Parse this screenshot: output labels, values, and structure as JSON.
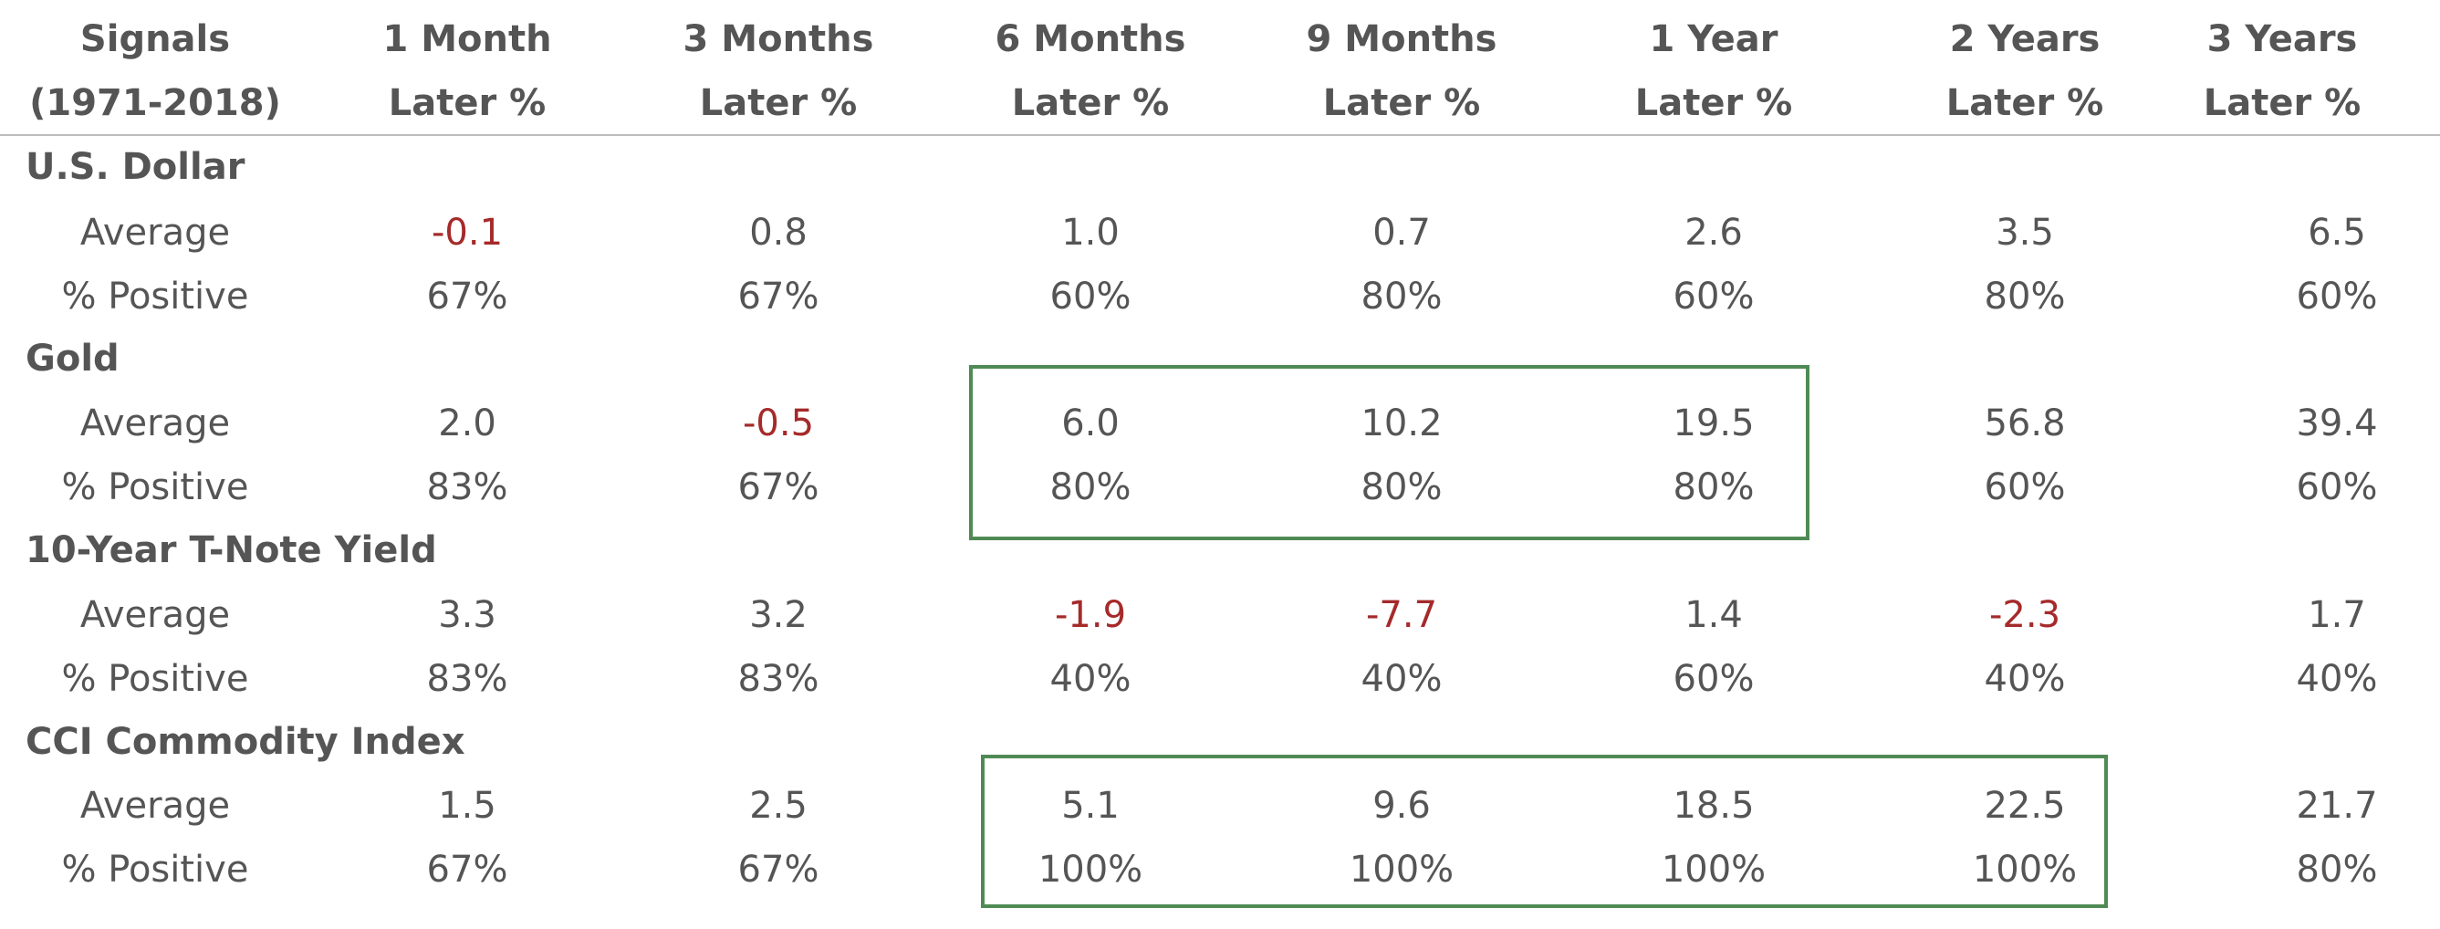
{
  "header": {
    "columns": [
      {
        "line1": "Signals",
        "line2": "(1971-2018)"
      },
      {
        "line1": "1 Month",
        "line2": "Later %"
      },
      {
        "line1": "3 Months",
        "line2": "Later %"
      },
      {
        "line1": "6 Months",
        "line2": "Later %"
      },
      {
        "line1": "9 Months",
        "line2": "Later %"
      },
      {
        "line1": "1 Year",
        "line2": "Later %"
      },
      {
        "line1": "2 Years",
        "line2": "Later %"
      },
      {
        "line1": "3 Years",
        "line2": "Later %"
      }
    ]
  },
  "sections": [
    {
      "title": "U.S. Dollar",
      "rows": [
        {
          "label": "Average",
          "values": [
            "-0.1",
            "0.8",
            "1.0",
            "0.7",
            "2.6",
            "3.5",
            "6.5"
          ]
        },
        {
          "label": "% Positive",
          "values": [
            "67%",
            "67%",
            "60%",
            "80%",
            "60%",
            "80%",
            "60%"
          ]
        }
      ]
    },
    {
      "title": "Gold",
      "rows": [
        {
          "label": "Average",
          "values": [
            "2.0",
            "-0.5",
            "6.0",
            "10.2",
            "19.5",
            "56.8",
            "39.4"
          ]
        },
        {
          "label": "% Positive",
          "values": [
            "83%",
            "67%",
            "80%",
            "80%",
            "80%",
            "60%",
            "60%"
          ]
        }
      ]
    },
    {
      "title": "10-Year T-Note Yield",
      "rows": [
        {
          "label": "Average",
          "values": [
            "3.3",
            "3.2",
            "-1.9",
            "-7.7",
            "1.4",
            "-2.3",
            "1.7"
          ]
        },
        {
          "label": "% Positive",
          "values": [
            "83%",
            "83%",
            "40%",
            "40%",
            "60%",
            "40%",
            "40%"
          ]
        }
      ]
    },
    {
      "title": "CCI Commodity Index",
      "rows": [
        {
          "label": "Average",
          "values": [
            "1.5",
            "2.5",
            "5.1",
            "9.6",
            "18.5",
            "22.5",
            "21.7"
          ]
        },
        {
          "label": "% Positive",
          "values": [
            "67%",
            "67%",
            "100%",
            "100%",
            "100%",
            "100%",
            "80%"
          ]
        }
      ]
    }
  ],
  "colors": {
    "text": "#555555",
    "negative": "#a52a2a",
    "highlight_border": "#4f8a55",
    "rule": "#bdbdbd"
  }
}
